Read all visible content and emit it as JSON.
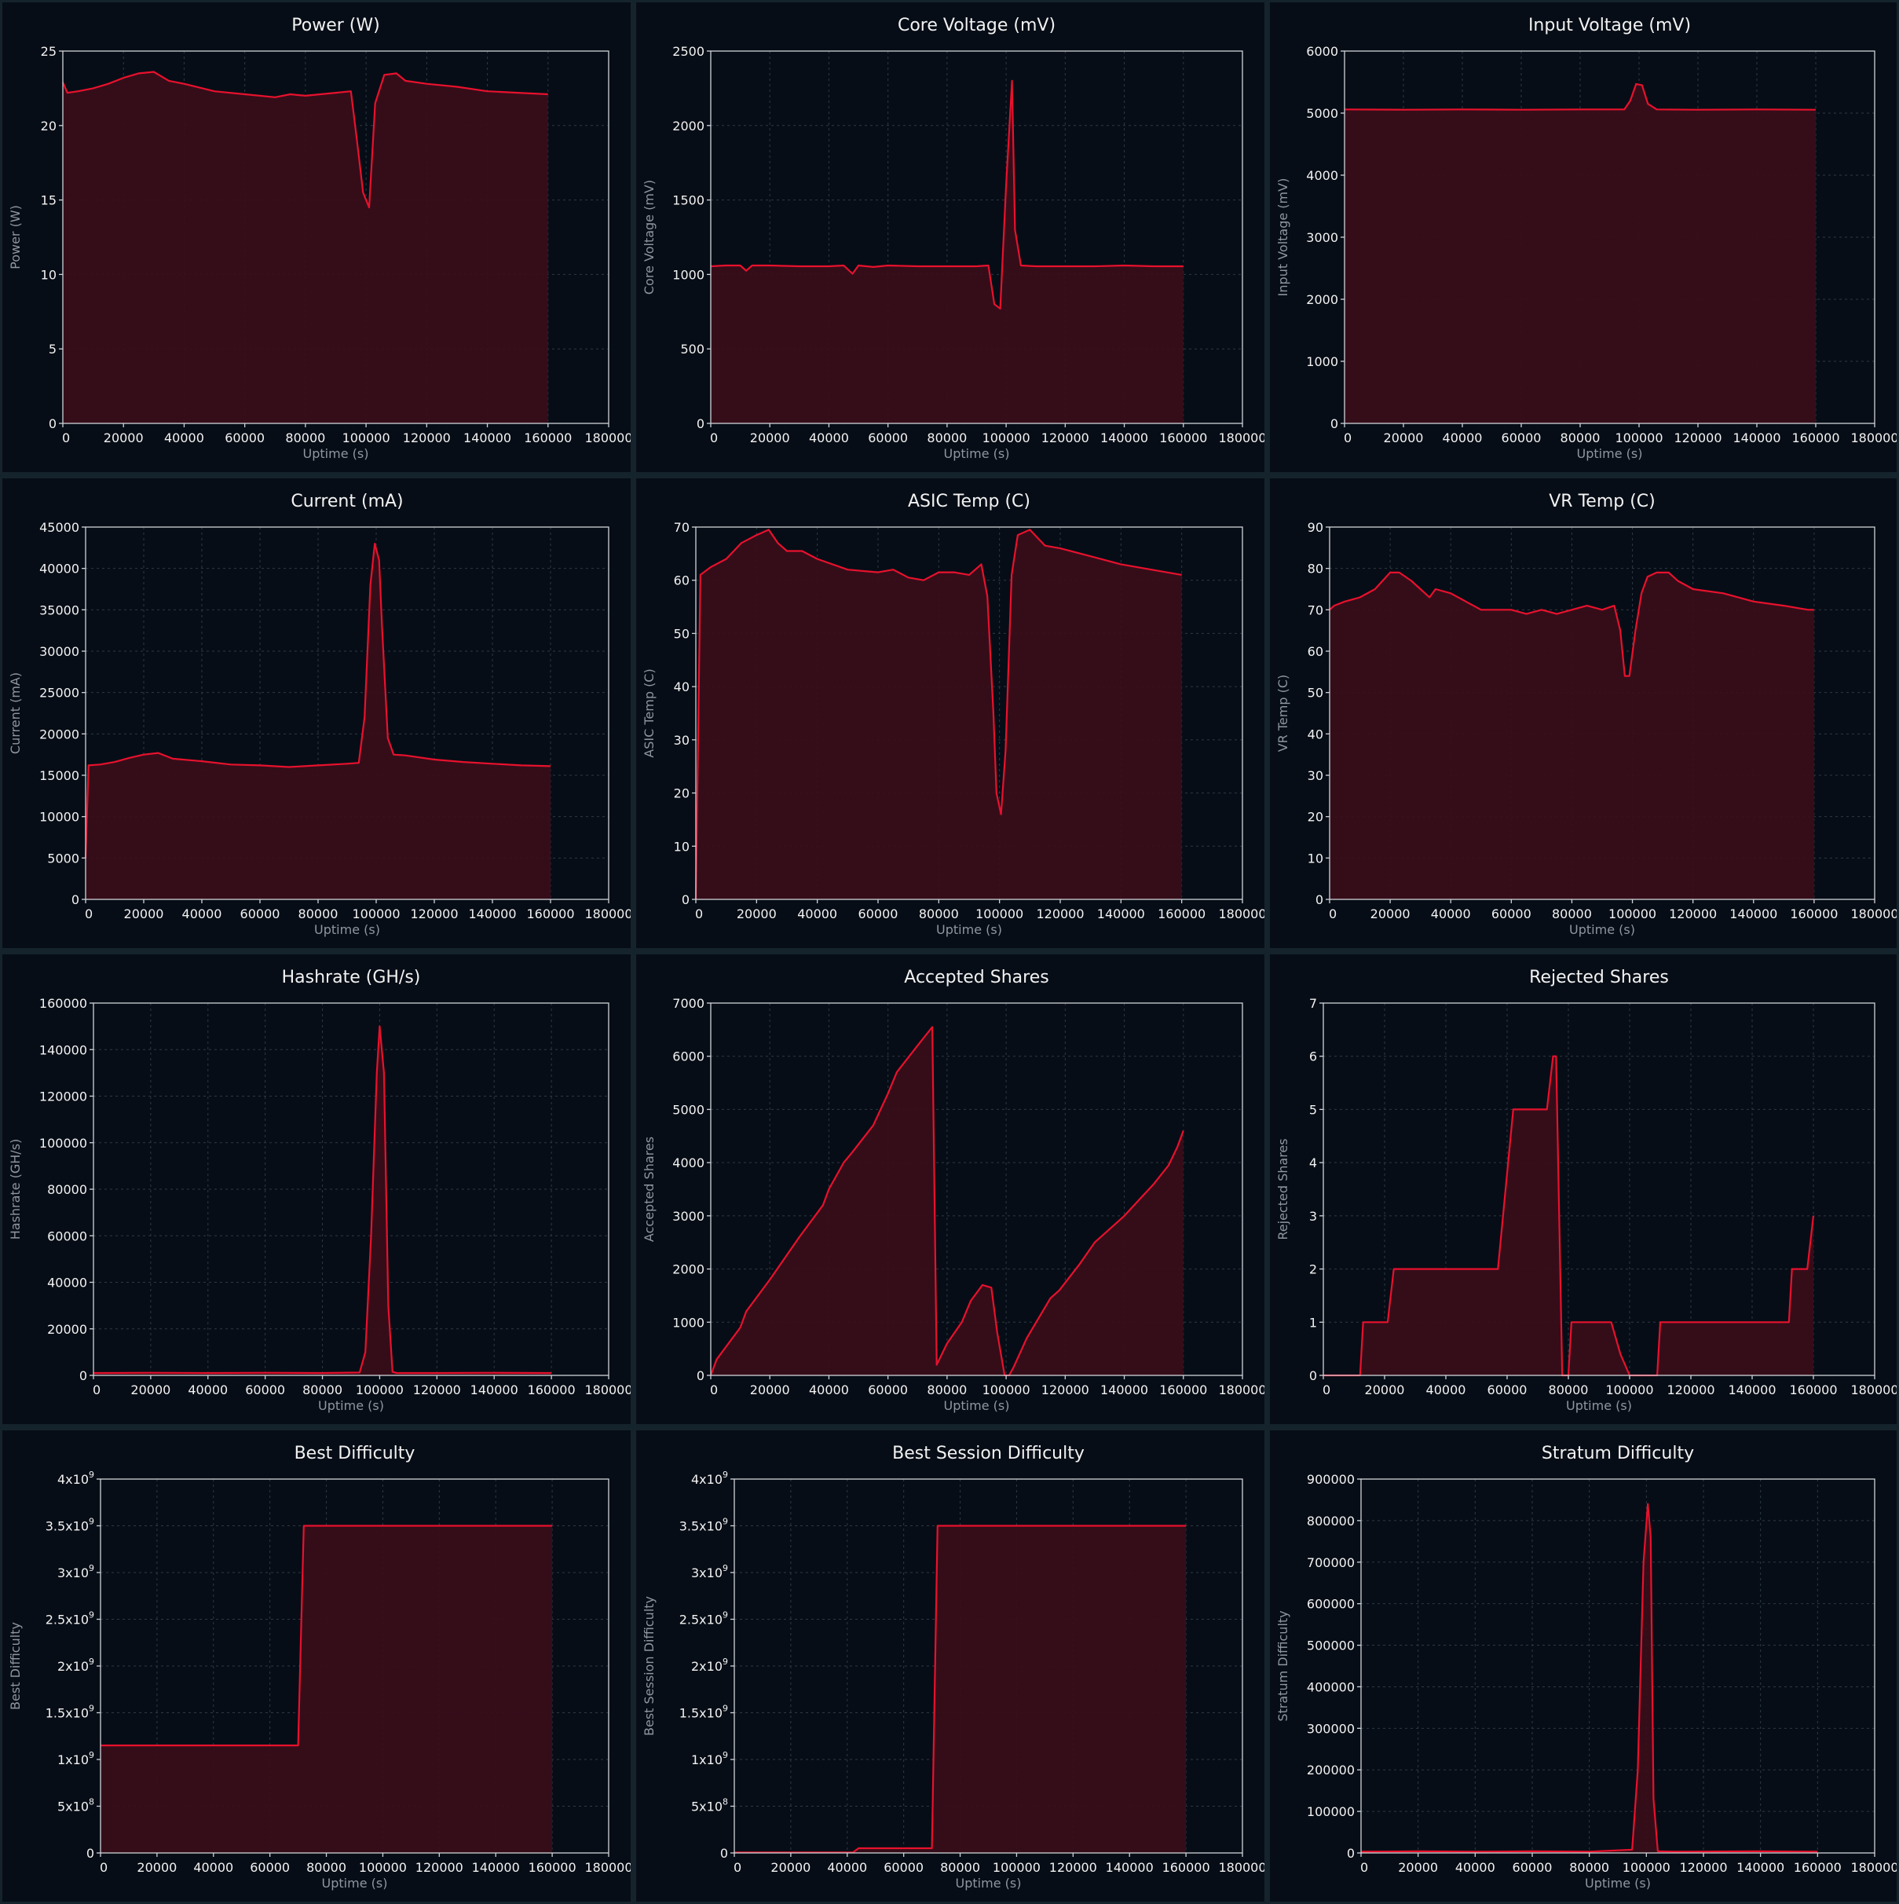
{
  "colors": {
    "background": "#15232c",
    "panel": "#070d16",
    "line": "#e8112d",
    "fill": "#3a0d1a",
    "text": "#f2f2f2",
    "axis_label": "#8f96a0"
  },
  "chart_data": [
    {
      "id": "power",
      "type": "area",
      "title": "Power (W)",
      "xlabel": "Uptime (s)",
      "ylabel": "Power (W)",
      "xlim": [
        0,
        180000
      ],
      "ylim": [
        0,
        25
      ],
      "xticks": [
        "0",
        "20000",
        "40000",
        "60000",
        "80000",
        "100000",
        "120000",
        "140000",
        "160000",
        "180000"
      ],
      "yticks": [
        "0",
        "5",
        "10",
        "15",
        "20",
        "25"
      ],
      "grid": true,
      "x": [
        0,
        1500,
        5000,
        10000,
        15000,
        20000,
        25000,
        30000,
        35000,
        40000,
        50000,
        60000,
        70000,
        75000,
        80000,
        90000,
        95000,
        97000,
        99000,
        101000,
        103000,
        106000,
        110000,
        113000,
        120000,
        130000,
        140000,
        150000,
        160000
      ],
      "y": [
        22.9,
        22.2,
        22.3,
        22.5,
        22.8,
        23.2,
        23.5,
        23.6,
        23.0,
        22.8,
        22.3,
        22.1,
        21.9,
        22.1,
        22.0,
        22.2,
        22.3,
        19.0,
        15.5,
        14.5,
        21.5,
        23.4,
        23.5,
        23.0,
        22.8,
        22.6,
        22.3,
        22.2,
        22.1
      ]
    },
    {
      "id": "core_voltage",
      "type": "area",
      "title": "Core Voltage (mV)",
      "xlabel": "Uptime (s)",
      "ylabel": "Core Voltage (mV)",
      "xlim": [
        0,
        180000
      ],
      "ylim": [
        0,
        2500
      ],
      "xticks": [
        "0",
        "20000",
        "40000",
        "60000",
        "80000",
        "100000",
        "120000",
        "140000",
        "160000",
        "180000"
      ],
      "yticks": [
        "0",
        "500",
        "1000",
        "1500",
        "2000",
        "2500"
      ],
      "grid": true,
      "x": [
        0,
        5000,
        10000,
        12000,
        14000,
        20000,
        30000,
        40000,
        45000,
        48000,
        50000,
        55000,
        60000,
        70000,
        80000,
        90000,
        94000,
        96000,
        98000,
        100000,
        102000,
        103000,
        105000,
        110000,
        120000,
        130000,
        140000,
        150000,
        160000
      ],
      "y": [
        1055,
        1060,
        1060,
        1025,
        1060,
        1060,
        1055,
        1055,
        1060,
        1005,
        1060,
        1050,
        1060,
        1055,
        1055,
        1055,
        1060,
        800,
        770,
        1600,
        2300,
        1300,
        1060,
        1055,
        1055,
        1055,
        1060,
        1055,
        1055
      ]
    },
    {
      "id": "input_voltage",
      "type": "area",
      "title": "Input Voltage (mV)",
      "xlabel": "Uptime (s)",
      "ylabel": "Input Voltage (mV)",
      "xlim": [
        0,
        180000
      ],
      "ylim": [
        0,
        6000
      ],
      "xticks": [
        "0",
        "20000",
        "40000",
        "60000",
        "80000",
        "100000",
        "120000",
        "140000",
        "160000",
        "180000"
      ],
      "yticks": [
        "0",
        "1000",
        "2000",
        "3000",
        "4000",
        "5000",
        "6000"
      ],
      "grid": true,
      "x": [
        0,
        20000,
        40000,
        60000,
        80000,
        95000,
        97000,
        99000,
        101000,
        103000,
        106000,
        120000,
        140000,
        160000
      ],
      "y": [
        5060,
        5055,
        5060,
        5055,
        5060,
        5060,
        5200,
        5470,
        5450,
        5150,
        5060,
        5055,
        5060,
        5055
      ]
    },
    {
      "id": "current",
      "type": "area",
      "title": "Current (mA)",
      "xlabel": "Uptime (s)",
      "ylabel": "Current (mA)",
      "xlim": [
        0,
        180000
      ],
      "ylim": [
        0,
        45000
      ],
      "xticks": [
        "0",
        "20000",
        "40000",
        "60000",
        "80000",
        "100000",
        "120000",
        "140000",
        "160000",
        "180000"
      ],
      "yticks": [
        "0",
        "5000",
        "10000",
        "15000",
        "20000",
        "25000",
        "30000",
        "35000",
        "40000",
        "45000"
      ],
      "grid": true,
      "x": [
        0,
        1000,
        5000,
        10000,
        15000,
        20000,
        25000,
        30000,
        40000,
        50000,
        60000,
        70000,
        80000,
        90000,
        94000,
        96000,
        98000,
        99500,
        101000,
        102000,
        104000,
        106000,
        110000,
        120000,
        130000,
        140000,
        150000,
        160000
      ],
      "y": [
        5000,
        16200,
        16300,
        16600,
        17100,
        17500,
        17700,
        17000,
        16700,
        16300,
        16200,
        16000,
        16200,
        16400,
        16500,
        22000,
        38000,
        43000,
        41000,
        33000,
        19500,
        17500,
        17400,
        16900,
        16600,
        16400,
        16200,
        16100
      ]
    },
    {
      "id": "asic_temp",
      "type": "area",
      "title": "ASIC Temp (C)",
      "xlabel": "Uptime (s)",
      "ylabel": "ASIC Temp (C)",
      "xlim": [
        0,
        180000
      ],
      "ylim": [
        0,
        70
      ],
      "xticks": [
        "0",
        "20000",
        "40000",
        "60000",
        "80000",
        "100000",
        "120000",
        "140000",
        "160000",
        "180000"
      ],
      "yticks": [
        "0",
        "10",
        "20",
        "30",
        "40",
        "50",
        "60",
        "70"
      ],
      "grid": true,
      "x": [
        0,
        1500,
        5000,
        10000,
        15000,
        20000,
        24000,
        27000,
        30000,
        35000,
        40000,
        50000,
        60000,
        65000,
        70000,
        75000,
        80000,
        85000,
        90000,
        94000,
        96000,
        98000,
        99000,
        100500,
        102000,
        104000,
        106000,
        110000,
        115000,
        120000,
        130000,
        140000,
        150000,
        160000
      ],
      "y": [
        0,
        61,
        62.5,
        64,
        67,
        68.5,
        69.5,
        67,
        65.5,
        65.5,
        64,
        62,
        61.5,
        62,
        60.5,
        60,
        61.5,
        61.5,
        61,
        63,
        57,
        35,
        20,
        16,
        28,
        61,
        68.5,
        69.5,
        66.5,
        66,
        64.5,
        63,
        62,
        61
      ]
    },
    {
      "id": "vr_temp",
      "type": "area",
      "title": "VR Temp (C)",
      "xlabel": "Uptime (s)",
      "ylabel": "VR Temp (C)",
      "xlim": [
        0,
        180000
      ],
      "ylim": [
        0,
        90
      ],
      "xticks": [
        "0",
        "20000",
        "40000",
        "60000",
        "80000",
        "100000",
        "120000",
        "140000",
        "160000",
        "180000"
      ],
      "yticks": [
        "0",
        "10",
        "20",
        "30",
        "40",
        "50",
        "60",
        "70",
        "80",
        "90"
      ],
      "grid": true,
      "x": [
        0,
        1500,
        5000,
        10000,
        15000,
        20000,
        23000,
        27000,
        30000,
        33000,
        35000,
        40000,
        45000,
        50000,
        60000,
        65000,
        70000,
        75000,
        80000,
        85000,
        90000,
        94000,
        96000,
        97500,
        99000,
        101000,
        103000,
        105000,
        108000,
        112000,
        115000,
        120000,
        130000,
        140000,
        150000,
        158000,
        160000
      ],
      "y": [
        70,
        71,
        72,
        73,
        75,
        79,
        79,
        77,
        75,
        73,
        75,
        74,
        72,
        70,
        70,
        69,
        70,
        69,
        70,
        71,
        70,
        71,
        65,
        54,
        54,
        65,
        74,
        78,
        79,
        79,
        77,
        75,
        74,
        72,
        71,
        70,
        70
      ]
    },
    {
      "id": "hashrate",
      "type": "area",
      "title": "Hashrate (GH/s)",
      "xlabel": "Uptime (s)",
      "ylabel": "Hashrate (GH/s)",
      "xlim": [
        0,
        180000
      ],
      "ylim": [
        0,
        160000
      ],
      "xticks": [
        "0",
        "20000",
        "40000",
        "60000",
        "80000",
        "100000",
        "120000",
        "140000",
        "160000",
        "180000"
      ],
      "yticks": [
        "0",
        "20000",
        "40000",
        "60000",
        "80000",
        "100000",
        "120000",
        "140000",
        "160000"
      ],
      "grid": true,
      "x": [
        0,
        20000,
        40000,
        60000,
        80000,
        93000,
        95000,
        97000,
        99000,
        100000,
        101500,
        103000,
        104500,
        106000,
        120000,
        140000,
        160000
      ],
      "y": [
        1000,
        1100,
        1000,
        1100,
        1000,
        1200,
        10000,
        60000,
        130000,
        150000,
        130000,
        30000,
        1500,
        1000,
        1000,
        1100,
        1000
      ]
    },
    {
      "id": "accepted_shares",
      "type": "area",
      "title": "Accepted Shares",
      "xlabel": "Uptime (s)",
      "ylabel": "Accepted Shares",
      "xlim": [
        0,
        180000
      ],
      "ylim": [
        0,
        7000
      ],
      "xticks": [
        "0",
        "20000",
        "40000",
        "60000",
        "80000",
        "100000",
        "120000",
        "140000",
        "160000",
        "180000"
      ],
      "yticks": [
        "0",
        "1000",
        "2000",
        "3000",
        "4000",
        "5000",
        "6000",
        "7000"
      ],
      "grid": true,
      "x": [
        0,
        2000,
        10000,
        12000,
        20000,
        30000,
        38000,
        40000,
        45000,
        48000,
        55000,
        60000,
        63000,
        70000,
        75000,
        76500,
        80000,
        85000,
        88000,
        92000,
        95000,
        97000,
        99500,
        101000,
        102500,
        107000,
        115000,
        118000,
        125000,
        130000,
        140000,
        145000,
        150000,
        155000,
        158000,
        160000
      ],
      "y": [
        0,
        300,
        900,
        1200,
        1800,
        2600,
        3200,
        3500,
        4000,
        4200,
        4700,
        5300,
        5700,
        6200,
        6550,
        200,
        600,
        1000,
        1400,
        1700,
        1650,
        800,
        0,
        0,
        150,
        700,
        1450,
        1600,
        2100,
        2500,
        3000,
        3300,
        3600,
        3950,
        4300,
        4600
      ]
    },
    {
      "id": "rejected_shares",
      "type": "area",
      "title": "Rejected Shares",
      "xlabel": "Uptime (s)",
      "ylabel": "Rejected Shares",
      "xlim": [
        0,
        180000
      ],
      "ylim": [
        0,
        7
      ],
      "xticks": [
        "0",
        "20000",
        "40000",
        "60000",
        "80000",
        "100000",
        "120000",
        "140000",
        "160000",
        "180000"
      ],
      "yticks": [
        "0",
        "1",
        "2",
        "3",
        "4",
        "5",
        "6",
        "7"
      ],
      "grid": true,
      "x": [
        0,
        12000,
        13000,
        21000,
        23000,
        57000,
        62000,
        73000,
        75000,
        76000,
        78000,
        80000,
        81000,
        90000,
        94000,
        97000,
        100000,
        109000,
        110000,
        152000,
        153000,
        158000,
        160000
      ],
      "y": [
        0,
        0,
        1,
        1,
        2,
        2,
        5,
        5,
        6,
        6,
        0,
        0,
        1,
        1,
        1,
        0.4,
        0,
        0,
        1,
        1,
        2,
        2,
        3
      ]
    },
    {
      "id": "best_difficulty",
      "type": "area",
      "title": "Best Difficulty",
      "xlabel": "Uptime (s)",
      "ylabel": "Best Difficulty",
      "xlim": [
        0,
        180000
      ],
      "ylim": [
        0,
        4000000000
      ],
      "xticks": [
        "0",
        "20000",
        "40000",
        "60000",
        "80000",
        "100000",
        "120000",
        "140000",
        "160000",
        "180000"
      ],
      "yticks": [
        "0",
        "5x10^8",
        "1x10^9",
        "1.5x10^9",
        "2x10^9",
        "2.5x10^9",
        "3x10^9",
        "3.5x10^9",
        "4x10^9"
      ],
      "grid": true,
      "x": [
        0,
        70000,
        72000,
        160000
      ],
      "y": [
        1150000000,
        1150000000,
        3500000000,
        3500000000
      ]
    },
    {
      "id": "best_session_difficulty",
      "type": "area",
      "title": "Best Session Difficulty",
      "xlabel": "Uptime (s)",
      "ylabel": "Best Session Difficulty",
      "xlim": [
        0,
        180000
      ],
      "ylim": [
        0,
        4000000000
      ],
      "xticks": [
        "0",
        "20000",
        "40000",
        "60000",
        "80000",
        "100000",
        "120000",
        "140000",
        "160000",
        "180000"
      ],
      "yticks": [
        "0",
        "5x10^8",
        "1x10^9",
        "1.5x10^9",
        "2x10^9",
        "2.5x10^9",
        "3x10^9",
        "3.5x10^9",
        "4x10^9"
      ],
      "grid": true,
      "x": [
        0,
        42000,
        44000,
        70000,
        72000,
        160000
      ],
      "y": [
        5000000,
        5000000,
        50000000,
        50000000,
        3500000000,
        3500000000
      ]
    },
    {
      "id": "stratum_difficulty",
      "type": "area",
      "title": "Stratum Difficulty",
      "xlabel": "Uptime (s)",
      "ylabel": "Stratum Difficulty",
      "xlim": [
        0,
        180000
      ],
      "ylim": [
        0,
        900000
      ],
      "xticks": [
        "0",
        "20000",
        "40000",
        "60000",
        "80000",
        "100000",
        "120000",
        "140000",
        "160000",
        "180000"
      ],
      "yticks": [
        "0",
        "100000",
        "200000",
        "300000",
        "400000",
        "500000",
        "600000",
        "700000",
        "800000",
        "900000"
      ],
      "grid": true,
      "x": [
        0,
        20000,
        40000,
        60000,
        80000,
        95000,
        97000,
        99000,
        100500,
        101500,
        102500,
        104000,
        110000,
        140000,
        160000
      ],
      "y": [
        3000,
        4000,
        3000,
        4000,
        3000,
        8000,
        200000,
        700000,
        840000,
        760000,
        130000,
        4000,
        3000,
        4000,
        3000
      ]
    }
  ]
}
